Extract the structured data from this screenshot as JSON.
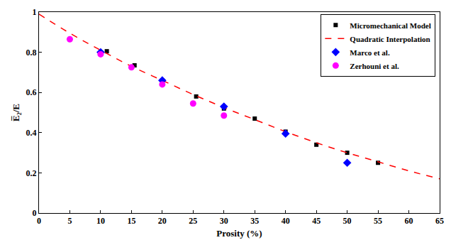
{
  "chart_data": {
    "type": "scatter",
    "x_label": "Prosity (%)",
    "y_label": "E̅₂/E",
    "xlim": [
      0,
      65
    ],
    "xticks": [
      0,
      5,
      10,
      15,
      20,
      25,
      30,
      35,
      40,
      45,
      50,
      55,
      60,
      65
    ],
    "ylim": [
      0,
      1
    ],
    "yticks": [
      0,
      0.2,
      0.4,
      0.6,
      0.8,
      1
    ],
    "grid": false,
    "legend": "top right",
    "series": [
      {
        "name": "Micromechanical Model",
        "type": "scatter",
        "marker": "square",
        "color": "#000000",
        "x": [
          11,
          15.5,
          20,
          25.5,
          30,
          35,
          40,
          45,
          50,
          55
        ],
        "values": [
          0.805,
          0.735,
          0.66,
          0.58,
          0.52,
          0.47,
          0.405,
          0.34,
          0.3,
          0.25
        ]
      },
      {
        "name": "Quadratic Interpolation",
        "type": "line",
        "line_style": "dashed",
        "color": "#ff0000",
        "x": [
          0,
          5,
          10,
          15,
          20,
          25,
          30,
          35,
          40,
          45,
          50,
          55,
          60,
          65
        ],
        "values": [
          0.99,
          0.895,
          0.81,
          0.73,
          0.66,
          0.59,
          0.525,
          0.465,
          0.405,
          0.35,
          0.3,
          0.255,
          0.21,
          0.17
        ]
      },
      {
        "name": "Marco et al.",
        "type": "scatter",
        "marker": "diamond",
        "color": "#0000ff",
        "x": [
          10,
          20,
          30,
          40,
          50
        ],
        "values": [
          0.8,
          0.66,
          0.53,
          0.395,
          0.25
        ]
      },
      {
        "name": "Zerhouni et al.",
        "type": "scatter",
        "marker": "circle",
        "color": "#ff00ff",
        "x": [
          5,
          10,
          15,
          20,
          25,
          30
        ],
        "values": [
          0.865,
          0.79,
          0.725,
          0.64,
          0.545,
          0.485
        ]
      }
    ]
  }
}
